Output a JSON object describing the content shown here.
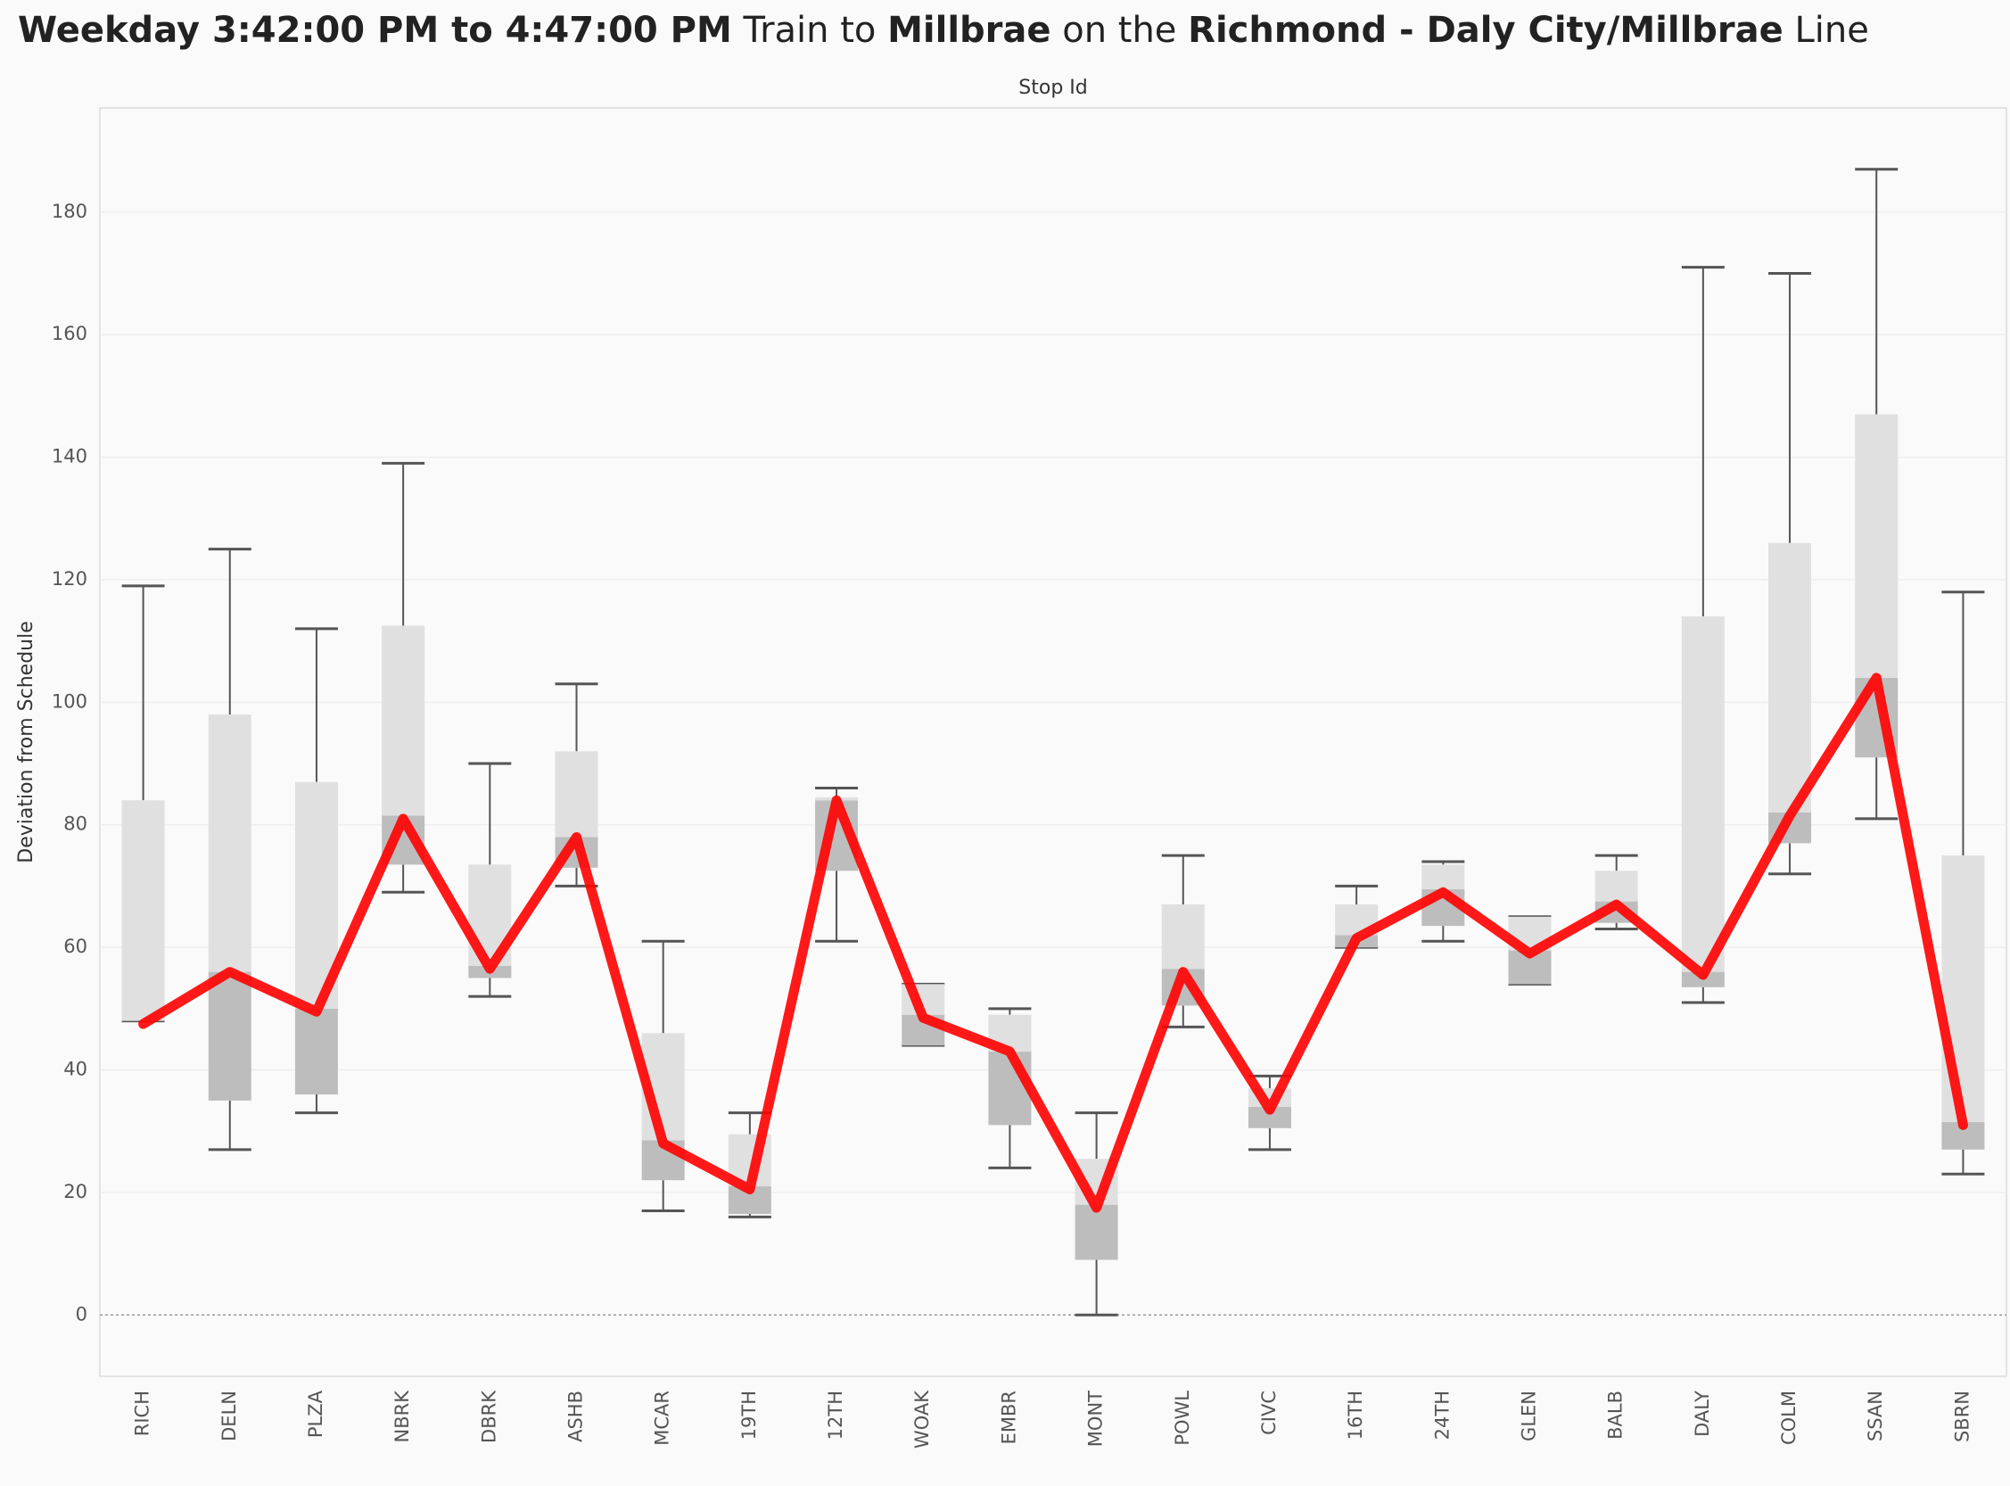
{
  "chart_data": {
    "type": "box",
    "title_parts": [
      {
        "text": "Weekday 3:42:00 PM to 4:47:00 PM",
        "bold": true
      },
      {
        "text": " Train to ",
        "bold": false
      },
      {
        "text": "Millbrae",
        "bold": true
      },
      {
        "text": " on the ",
        "bold": false
      },
      {
        "text": "Richmond - Daly City/Millbrae",
        "bold": true
      },
      {
        "text": " Line",
        "bold": false
      }
    ],
    "x_label": "Stop Id",
    "y_label": "Deviation from Schedule",
    "categories": [
      "RICH",
      "DELN",
      "PLZA",
      "NBRK",
      "DBRK",
      "ASHB",
      "MCAR",
      "19TH",
      "12TH",
      "WOAK",
      "EMBR",
      "MONT",
      "POWL",
      "CIVC",
      "16TH",
      "24TH",
      "GLEN",
      "BALB",
      "DALY",
      "COLM",
      "SSAN",
      "SBRN"
    ],
    "boxes": [
      {
        "low": 48,
        "q1": 48,
        "median": 48,
        "q3": 84,
        "high": 119
      },
      {
        "low": 27,
        "q1": 35,
        "median": 56,
        "q3": 98,
        "high": 125
      },
      {
        "low": 33,
        "q1": 36,
        "median": 50,
        "q3": 87,
        "high": 112
      },
      {
        "low": 69,
        "q1": 73.5,
        "median": 81.5,
        "q3": 112.5,
        "high": 139
      },
      {
        "low": 52,
        "q1": 55,
        "median": 57,
        "q3": 73.5,
        "high": 90
      },
      {
        "low": 70,
        "q1": 73,
        "median": 78,
        "q3": 92,
        "high": 103
      },
      {
        "low": 17,
        "q1": 22,
        "median": 28.5,
        "q3": 46,
        "high": 61
      },
      {
        "low": 16,
        "q1": 16.5,
        "median": 21,
        "q3": 29.5,
        "high": 33
      },
      {
        "low": 61,
        "q1": 72.5,
        "median": 84,
        "q3": 84.5,
        "high": 86
      },
      {
        "low": 44,
        "q1": 44,
        "median": 49,
        "q3": 54,
        "high": 54
      },
      {
        "low": 24,
        "q1": 31,
        "median": 43,
        "q3": 49,
        "high": 50
      },
      {
        "low": 0,
        "q1": 9,
        "median": 18,
        "q3": 25.5,
        "high": 33
      },
      {
        "low": 47,
        "q1": 50.5,
        "median": 56.5,
        "q3": 67,
        "high": 75
      },
      {
        "low": 27,
        "q1": 30.5,
        "median": 34,
        "q3": 37,
        "high": 39
      },
      {
        "low": 60,
        "q1": 60,
        "median": 62,
        "q3": 67,
        "high": 70
      },
      {
        "low": 61,
        "q1": 63.5,
        "median": 69.5,
        "q3": 73.5,
        "high": 74
      },
      {
        "low": 54,
        "q1": 54,
        "median": 59.5,
        "q3": 65,
        "high": 65
      },
      {
        "low": 63,
        "q1": 64,
        "median": 67.5,
        "q3": 72.5,
        "high": 75
      },
      {
        "low": 51,
        "q1": 53.5,
        "median": 56,
        "q3": 114,
        "high": 171
      },
      {
        "low": 72,
        "q1": 77,
        "median": 82,
        "q3": 126,
        "high": 170
      },
      {
        "low": 81,
        "q1": 91,
        "median": 104,
        "q3": 147,
        "high": 187
      },
      {
        "low": 23,
        "q1": 27,
        "median": 31.5,
        "q3": 75,
        "high": 118
      }
    ],
    "line_values": [
      47.5,
      56,
      49.5,
      81,
      56.5,
      78,
      28,
      20.5,
      84,
      48.5,
      43,
      17.5,
      56,
      33.5,
      61.5,
      69,
      59,
      67,
      55.5,
      81.5,
      104,
      31
    ],
    "line_color": "#ff0000",
    "box_colors": {
      "lower": "#bdbdbd",
      "upper": "#e0e0e0",
      "whisker": "#555555"
    },
    "ylim": [
      -10,
      197
    ],
    "yticks": [
      0,
      20,
      40,
      60,
      80,
      100,
      120,
      140,
      160,
      180
    ],
    "grid": true
  }
}
